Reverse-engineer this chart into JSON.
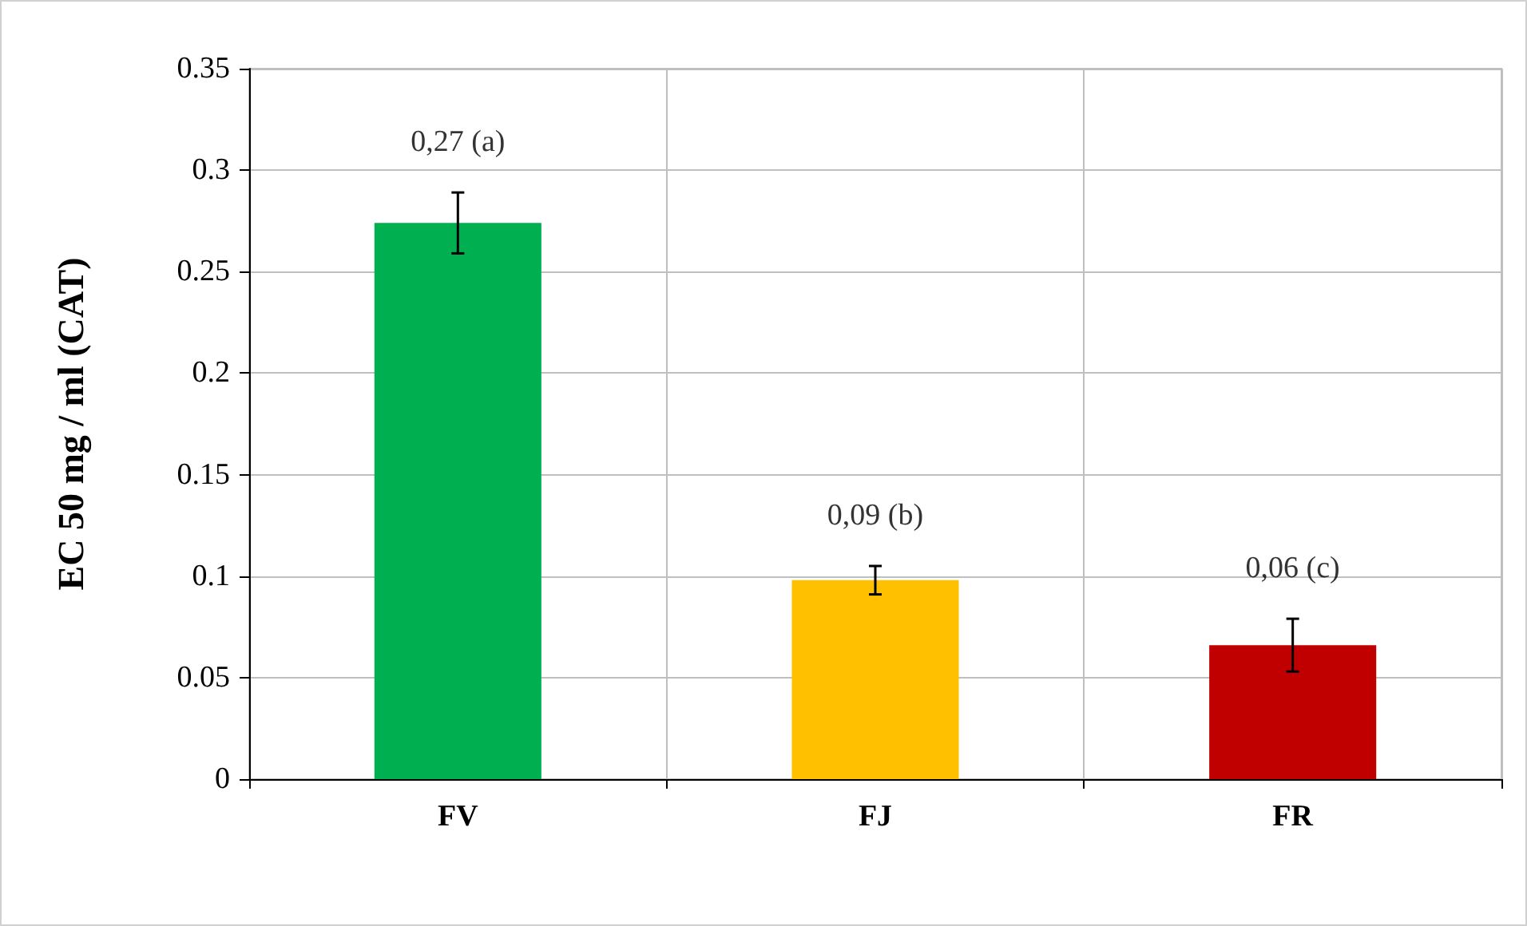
{
  "chart_data": {
    "type": "bar",
    "ylabel": "EC 50 mg / ml (CAT)",
    "categories": [
      "FV",
      "FJ",
      "FR"
    ],
    "values": [
      0.274,
      0.098,
      0.066
    ],
    "colors": [
      "#00b050",
      "#ffc000",
      "#c00000"
    ],
    "errors": [
      0.015,
      0.007,
      0.013
    ],
    "annotations": [
      {
        "text": "0,27 (a)",
        "x": "FV",
        "y": 0.289
      },
      {
        "text": "0,09 (b)",
        "x": "FJ",
        "y": 0.105
      },
      {
        "text": "0,06 (c)",
        "x": "FR",
        "y": 0.079
      }
    ],
    "ylim": [
      0,
      0.35
    ],
    "yticks": [
      0,
      0.05,
      0.1,
      0.15,
      0.2,
      0.25,
      0.3,
      0.35
    ],
    "grid": true
  }
}
